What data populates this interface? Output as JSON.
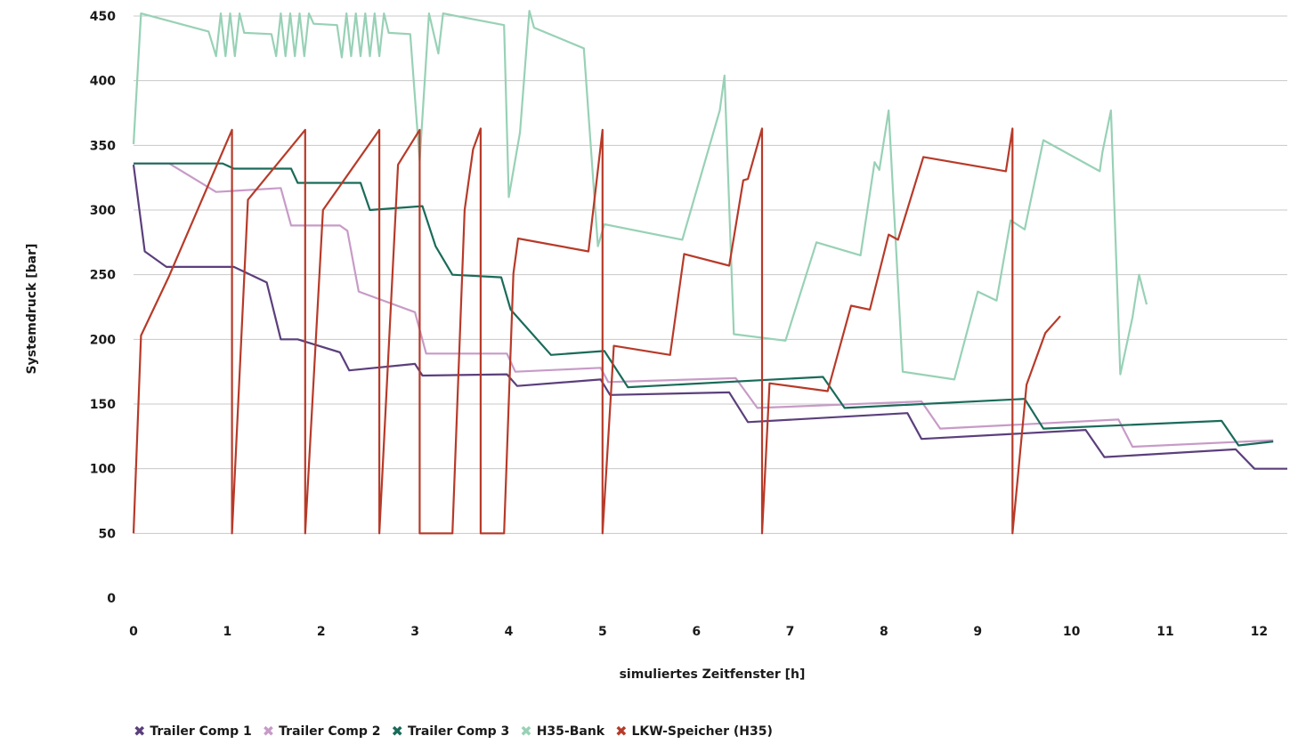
{
  "chart_data": {
    "type": "line",
    "xlabel": "simuliertes Zeitfenster [h]",
    "ylabel": "Systemdruck [bar]",
    "xlim": [
      0,
      12.3
    ],
    "ylim": [
      0,
      450
    ],
    "xticks": [
      "0",
      "1",
      "2",
      "3",
      "4",
      "5",
      "6",
      "7",
      "8",
      "9",
      "10",
      "11",
      "12"
    ],
    "yticks": [
      "0",
      "50",
      "100",
      "150",
      "200",
      "250",
      "300",
      "350",
      "400",
      "450"
    ],
    "grid": "horizontal",
    "legend_position": "bottom",
    "series": [
      {
        "name": "Trailer Comp 1",
        "color": "#5b3f7c",
        "marker": "✖",
        "points": [
          [
            0,
            335
          ],
          [
            0.12,
            268
          ],
          [
            0.35,
            256
          ],
          [
            1.07,
            256
          ],
          [
            1.42,
            244
          ],
          [
            1.57,
            200
          ],
          [
            1.75,
            200
          ],
          [
            2.2,
            190
          ],
          [
            2.3,
            176
          ],
          [
            3.0,
            181
          ],
          [
            3.08,
            172
          ],
          [
            3.98,
            173
          ],
          [
            4.09,
            164
          ],
          [
            4.98,
            169
          ],
          [
            5.08,
            157
          ],
          [
            6.35,
            159
          ],
          [
            6.55,
            136
          ],
          [
            8.25,
            143
          ],
          [
            8.4,
            123
          ],
          [
            10.15,
            130
          ],
          [
            10.35,
            109
          ],
          [
            11.75,
            115
          ],
          [
            11.95,
            100
          ],
          [
            12.3,
            100
          ]
        ]
      },
      {
        "name": "Trailer Comp 2",
        "color": "#c79bc7",
        "marker": "✖",
        "points": [
          [
            0,
            336
          ],
          [
            0.38,
            336
          ],
          [
            0.88,
            314
          ],
          [
            1.57,
            317
          ],
          [
            1.68,
            288
          ],
          [
            2.2,
            288
          ],
          [
            2.28,
            284
          ],
          [
            2.4,
            237
          ],
          [
            3.0,
            221
          ],
          [
            3.12,
            189
          ],
          [
            3.98,
            189
          ],
          [
            4.07,
            175
          ],
          [
            4.98,
            178
          ],
          [
            5.06,
            167
          ],
          [
            6.42,
            170
          ],
          [
            6.65,
            147
          ],
          [
            8.4,
            152
          ],
          [
            8.6,
            131
          ],
          [
            10.5,
            138
          ],
          [
            10.65,
            117
          ],
          [
            12.15,
            122
          ]
        ]
      },
      {
        "name": "Trailer Comp 3",
        "color": "#1a6b5a",
        "marker": "✖",
        "points": [
          [
            0,
            336
          ],
          [
            0.95,
            336
          ],
          [
            1.07,
            332
          ],
          [
            1.68,
            332
          ],
          [
            1.75,
            321
          ],
          [
            2.42,
            321
          ],
          [
            2.52,
            300
          ],
          [
            3.08,
            303
          ],
          [
            3.22,
            272
          ],
          [
            3.4,
            250
          ],
          [
            3.92,
            248
          ],
          [
            4.02,
            223
          ],
          [
            4.45,
            188
          ],
          [
            5.02,
            191
          ],
          [
            5.27,
            163
          ],
          [
            7.35,
            171
          ],
          [
            7.58,
            147
          ],
          [
            9.5,
            154
          ],
          [
            9.7,
            131
          ],
          [
            11.6,
            137
          ],
          [
            11.78,
            118
          ],
          [
            12.15,
            121
          ]
        ]
      },
      {
        "name": "H35-Bank",
        "color": "#98d1b6",
        "marker": "✖",
        "points": [
          [
            0,
            351
          ],
          [
            0.08,
            452
          ],
          [
            0.8,
            438
          ],
          [
            0.88,
            419
          ],
          [
            0.93,
            452
          ],
          [
            0.98,
            419
          ],
          [
            1.03,
            452
          ],
          [
            1.08,
            419
          ],
          [
            1.13,
            452
          ],
          [
            1.18,
            437
          ],
          [
            1.47,
            436
          ],
          [
            1.52,
            419
          ],
          [
            1.57,
            452
          ],
          [
            1.62,
            419
          ],
          [
            1.67,
            452
          ],
          [
            1.72,
            419
          ],
          [
            1.77,
            452
          ],
          [
            1.82,
            419
          ],
          [
            1.87,
            452
          ],
          [
            1.92,
            444
          ],
          [
            2.17,
            443
          ],
          [
            2.22,
            418
          ],
          [
            2.27,
            452
          ],
          [
            2.32,
            419
          ],
          [
            2.37,
            452
          ],
          [
            2.42,
            419
          ],
          [
            2.47,
            452
          ],
          [
            2.52,
            419
          ],
          [
            2.57,
            452
          ],
          [
            2.62,
            419
          ],
          [
            2.67,
            452
          ],
          [
            2.72,
            437
          ],
          [
            2.95,
            436
          ],
          [
            3.05,
            338
          ],
          [
            3.15,
            452
          ],
          [
            3.25,
            421
          ],
          [
            3.3,
            452
          ],
          [
            3.95,
            443
          ],
          [
            4.0,
            310
          ],
          [
            4.12,
            360
          ],
          [
            4.22,
            454
          ],
          [
            4.27,
            441
          ],
          [
            4.8,
            425
          ],
          [
            4.95,
            272
          ],
          [
            5.02,
            289
          ],
          [
            5.85,
            277
          ],
          [
            6.25,
            377
          ],
          [
            6.3,
            404
          ],
          [
            6.4,
            204
          ],
          [
            6.95,
            199
          ],
          [
            7.28,
            275
          ],
          [
            7.75,
            265
          ],
          [
            7.9,
            337
          ],
          [
            7.95,
            331
          ],
          [
            8.05,
            377
          ],
          [
            8.2,
            175
          ],
          [
            8.75,
            169
          ],
          [
            9.0,
            237
          ],
          [
            9.2,
            230
          ],
          [
            9.35,
            292
          ],
          [
            9.5,
            285
          ],
          [
            9.7,
            354
          ],
          [
            10.3,
            330
          ],
          [
            10.33,
            345
          ],
          [
            10.42,
            377
          ],
          [
            10.52,
            173
          ],
          [
            10.65,
            217
          ],
          [
            10.72,
            250
          ],
          [
            10.8,
            227
          ]
        ]
      },
      {
        "name": "LKW-Speicher (H35)",
        "color": "#b73a29",
        "marker": "✖",
        "points": [
          [
            0,
            50
          ],
          [
            0.08,
            203
          ],
          [
            0.38,
            249
          ],
          [
            1.05,
            362
          ],
          [
            1.05,
            50
          ],
          [
            1.22,
            308
          ],
          [
            1.83,
            362
          ],
          [
            1.83,
            50
          ],
          [
            2.02,
            300
          ],
          [
            2.62,
            362
          ],
          [
            2.62,
            50
          ],
          [
            2.82,
            335
          ],
          [
            2.87,
            341
          ],
          [
            3.05,
            362
          ],
          [
            3.05,
            50
          ],
          [
            3.4,
            50
          ],
          [
            3.53,
            300
          ],
          [
            3.62,
            347
          ],
          [
            3.7,
            363
          ],
          [
            3.7,
            50
          ],
          [
            3.95,
            50
          ],
          [
            4.05,
            251
          ],
          [
            4.1,
            278
          ],
          [
            4.85,
            268
          ],
          [
            5.0,
            362
          ],
          [
            5.0,
            50
          ],
          [
            5.12,
            195
          ],
          [
            5.72,
            188
          ],
          [
            5.87,
            266
          ],
          [
            6.35,
            257
          ],
          [
            6.5,
            323
          ],
          [
            6.55,
            324
          ],
          [
            6.7,
            363
          ],
          [
            6.7,
            50
          ],
          [
            6.78,
            166
          ],
          [
            7.4,
            160
          ],
          [
            7.65,
            226
          ],
          [
            7.85,
            223
          ],
          [
            8.05,
            281
          ],
          [
            8.15,
            277
          ],
          [
            8.42,
            341
          ],
          [
            9.3,
            330
          ],
          [
            9.37,
            363
          ],
          [
            9.37,
            50
          ],
          [
            9.52,
            165
          ],
          [
            9.72,
            205
          ],
          [
            9.88,
            218
          ]
        ]
      }
    ]
  }
}
